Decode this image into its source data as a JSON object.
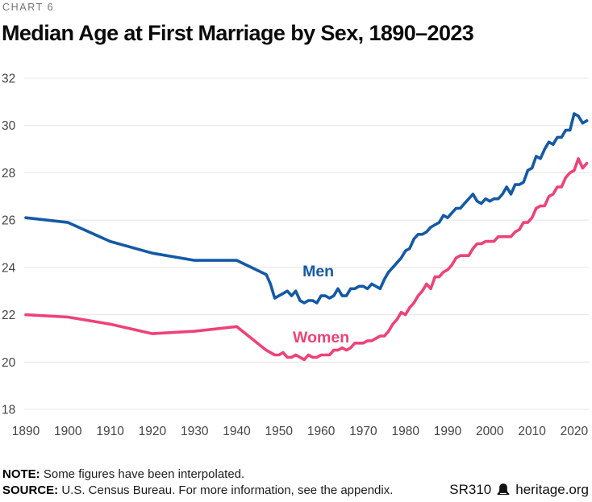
{
  "header": {
    "kicker": "CHART 6",
    "title": "Median Age at First Marriage by Sex, 1890–2023"
  },
  "chart_data": {
    "type": "line",
    "title": "Median Age at First Marriage by Sex, 1890–2023",
    "xlabel": "",
    "ylabel": "",
    "ylim": [
      18,
      32
    ],
    "xlim": [
      1890,
      2023
    ],
    "yticks": [
      18,
      20,
      22,
      24,
      26,
      28,
      30,
      32
    ],
    "xticks": [
      1890,
      1900,
      1910,
      1920,
      1930,
      1940,
      1950,
      1960,
      1970,
      1980,
      1990,
      2000,
      2010,
      2020
    ],
    "grid": "horizontal-only",
    "legend_position": "inline-labels",
    "colors": {
      "men": "#1459A6",
      "women": "#EE4277",
      "gridline": "#E4E4E4",
      "tick_text": "#454545"
    },
    "x": [
      1890,
      1900,
      1910,
      1920,
      1930,
      1940,
      1947,
      1948,
      1949,
      1950,
      1951,
      1952,
      1953,
      1954,
      1955,
      1956,
      1957,
      1958,
      1959,
      1960,
      1961,
      1962,
      1963,
      1964,
      1965,
      1966,
      1967,
      1968,
      1969,
      1970,
      1971,
      1972,
      1973,
      1974,
      1975,
      1976,
      1977,
      1978,
      1979,
      1980,
      1981,
      1982,
      1983,
      1984,
      1985,
      1986,
      1987,
      1988,
      1989,
      1990,
      1991,
      1992,
      1993,
      1994,
      1995,
      1996,
      1997,
      1998,
      1999,
      2000,
      2001,
      2002,
      2003,
      2004,
      2005,
      2006,
      2007,
      2008,
      2009,
      2010,
      2011,
      2012,
      2013,
      2014,
      2015,
      2016,
      2017,
      2018,
      2019,
      2020,
      2021,
      2022,
      2023
    ],
    "series": [
      {
        "name": "Men",
        "color_key": "men",
        "label": {
          "text": "Men",
          "x_year": 1955.6,
          "y_value": 23.62
        },
        "values": [
          26.1,
          25.9,
          25.1,
          24.6,
          24.3,
          24.3,
          23.7,
          23.3,
          22.7,
          22.8,
          22.9,
          23.0,
          22.8,
          23.0,
          22.6,
          22.5,
          22.6,
          22.6,
          22.5,
          22.8,
          22.8,
          22.7,
          22.8,
          23.1,
          22.8,
          22.8,
          23.1,
          23.1,
          23.2,
          23.2,
          23.1,
          23.3,
          23.2,
          23.1,
          23.5,
          23.8,
          24.0,
          24.2,
          24.4,
          24.7,
          24.8,
          25.2,
          25.4,
          25.4,
          25.5,
          25.7,
          25.8,
          25.9,
          26.2,
          26.1,
          26.3,
          26.5,
          26.5,
          26.7,
          26.9,
          27.1,
          26.8,
          26.7,
          26.9,
          26.8,
          26.9,
          26.9,
          27.1,
          27.4,
          27.1,
          27.5,
          27.5,
          27.6,
          28.1,
          28.2,
          28.7,
          28.6,
          29.0,
          29.3,
          29.2,
          29.5,
          29.5,
          29.8,
          29.8,
          30.5,
          30.4,
          30.1,
          30.2
        ]
      },
      {
        "name": "Women",
        "color_key": "women",
        "label": {
          "text": "Women",
          "x_year": 1953.3,
          "y_value": 20.83
        },
        "values": [
          22.0,
          21.9,
          21.6,
          21.2,
          21.3,
          21.5,
          20.5,
          20.4,
          20.3,
          20.3,
          20.4,
          20.2,
          20.2,
          20.3,
          20.2,
          20.1,
          20.3,
          20.2,
          20.2,
          20.3,
          20.3,
          20.3,
          20.5,
          20.5,
          20.6,
          20.5,
          20.6,
          20.8,
          20.8,
          20.8,
          20.9,
          20.9,
          21.0,
          21.1,
          21.1,
          21.3,
          21.6,
          21.8,
          22.1,
          22.0,
          22.3,
          22.5,
          22.8,
          23.0,
          23.3,
          23.1,
          23.6,
          23.6,
          23.8,
          23.9,
          24.1,
          24.4,
          24.5,
          24.5,
          24.5,
          24.8,
          25.0,
          25.0,
          25.1,
          25.1,
          25.1,
          25.3,
          25.3,
          25.3,
          25.3,
          25.5,
          25.6,
          25.9,
          25.9,
          26.1,
          26.5,
          26.6,
          26.6,
          27.0,
          27.1,
          27.4,
          27.4,
          27.8,
          28.0,
          28.1,
          28.6,
          28.2,
          28.4
        ]
      }
    ]
  },
  "footer": {
    "note_label": "NOTE:",
    "note_text": "Some figures have been interpolated.",
    "source_label": "SOURCE:",
    "source_text": "U.S. Census Bureau. For more information, see the appendix.",
    "report_id": "SR310",
    "site": "heritage.org"
  }
}
